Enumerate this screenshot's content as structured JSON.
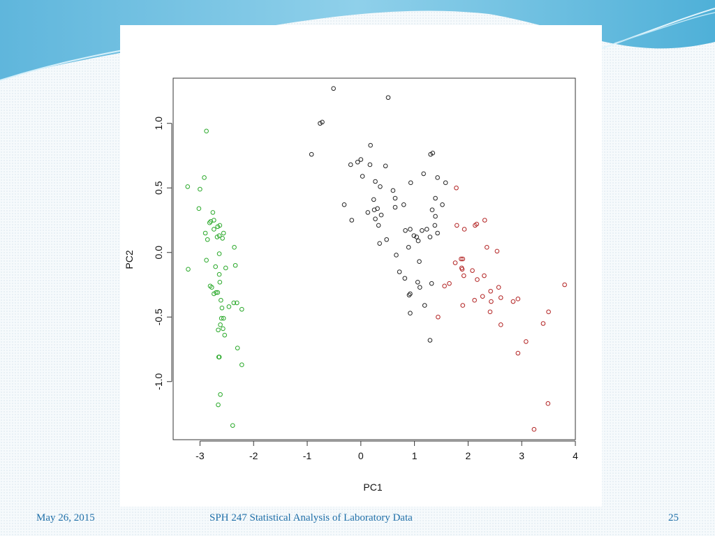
{
  "footer": {
    "date": "May 26, 2015",
    "course": "SPH 247 Statistical Analysis of Laboratory Data",
    "page": "25"
  },
  "colors": {
    "series_green": "#28a828",
    "series_black": "#222222",
    "series_red": "#b22222",
    "footer_text": "#1f6fa8"
  },
  "chart_data": {
    "type": "scatter",
    "title": "",
    "xlabel": "PC1",
    "ylabel": "PC2",
    "xlim": [
      -3.5,
      4.0
    ],
    "ylim": [
      -1.45,
      1.35
    ],
    "x_ticks": [
      "-3",
      "-2",
      "-1",
      "0",
      "1",
      "2",
      "3",
      "4"
    ],
    "y_ticks": [
      "-1.0",
      "-0.5",
      "0.0",
      "0.5",
      "1.0"
    ],
    "grid": false,
    "legend": "none",
    "series": [
      {
        "color": "#28a828",
        "points": [
          [
            -3.23,
            0.51
          ],
          [
            -3.22,
            -0.13
          ],
          [
            -3.0,
            0.49
          ],
          [
            -3.02,
            0.34
          ],
          [
            -2.92,
            0.58
          ],
          [
            -2.88,
            0.94
          ],
          [
            -2.9,
            0.15
          ],
          [
            -2.86,
            0.1
          ],
          [
            -2.88,
            -0.06
          ],
          [
            -2.82,
            0.23
          ],
          [
            -2.8,
            0.24
          ],
          [
            -2.76,
            0.31
          ],
          [
            -2.74,
            0.25
          ],
          [
            -2.74,
            0.18
          ],
          [
            -2.67,
            0.2
          ],
          [
            -2.63,
            0.21
          ],
          [
            -2.68,
            0.12
          ],
          [
            -2.64,
            0.13
          ],
          [
            -2.56,
            0.15
          ],
          [
            -2.64,
            -0.01
          ],
          [
            -2.58,
            0.11
          ],
          [
            -2.81,
            -0.26
          ],
          [
            -2.78,
            -0.27
          ],
          [
            -2.71,
            -0.11
          ],
          [
            -2.64,
            -0.17
          ],
          [
            -2.63,
            -0.23
          ],
          [
            -2.74,
            -0.32
          ],
          [
            -2.7,
            -0.31
          ],
          [
            -2.67,
            -0.31
          ],
          [
            -2.61,
            -0.37
          ],
          [
            -2.59,
            -0.43
          ],
          [
            -2.56,
            -0.51
          ],
          [
            -2.6,
            -0.51
          ],
          [
            -2.62,
            -0.56
          ],
          [
            -2.57,
            -0.59
          ],
          [
            -2.66,
            -0.6
          ],
          [
            -2.54,
            -0.64
          ],
          [
            -2.65,
            -0.81
          ],
          [
            -2.64,
            -0.81
          ],
          [
            -2.52,
            -0.12
          ],
          [
            -2.46,
            -0.42
          ],
          [
            -2.37,
            -0.39
          ],
          [
            -2.31,
            -0.39
          ],
          [
            -2.36,
            0.04
          ],
          [
            -2.34,
            -0.1
          ],
          [
            -2.22,
            -0.44
          ],
          [
            -2.3,
            -0.74
          ],
          [
            -2.22,
            -0.87
          ],
          [
            -2.62,
            -1.1
          ],
          [
            -2.66,
            -1.18
          ],
          [
            -2.39,
            -1.34
          ]
        ]
      },
      {
        "color": "#222222",
        "points": [
          [
            -0.51,
            1.27
          ],
          [
            -0.76,
            1.0
          ],
          [
            -0.72,
            1.01
          ],
          [
            0.51,
            1.2
          ],
          [
            -0.92,
            0.76
          ],
          [
            0.18,
            0.83
          ],
          [
            -0.19,
            0.68
          ],
          [
            -0.06,
            0.7
          ],
          [
            0.0,
            0.72
          ],
          [
            0.17,
            0.68
          ],
          [
            0.46,
            0.67
          ],
          [
            0.03,
            0.59
          ],
          [
            0.27,
            0.55
          ],
          [
            0.36,
            0.51
          ],
          [
            0.24,
            0.41
          ],
          [
            0.25,
            0.33
          ],
          [
            0.31,
            0.34
          ],
          [
            0.13,
            0.31
          ],
          [
            0.38,
            0.29
          ],
          [
            -0.31,
            0.37
          ],
          [
            -0.17,
            0.25
          ],
          [
            0.27,
            0.26
          ],
          [
            0.33,
            0.21
          ],
          [
            0.48,
            0.1
          ],
          [
            0.35,
            0.07
          ],
          [
            0.64,
            0.42
          ],
          [
            0.6,
            0.48
          ],
          [
            0.64,
            0.35
          ],
          [
            0.8,
            0.37
          ],
          [
            0.93,
            0.54
          ],
          [
            1.17,
            0.61
          ],
          [
            1.3,
            0.76
          ],
          [
            1.34,
            0.77
          ],
          [
            1.43,
            0.58
          ],
          [
            1.58,
            0.54
          ],
          [
            1.39,
            0.42
          ],
          [
            1.52,
            0.37
          ],
          [
            1.33,
            0.33
          ],
          [
            1.23,
            0.18
          ],
          [
            1.39,
            0.28
          ],
          [
            1.38,
            0.21
          ],
          [
            1.43,
            0.15
          ],
          [
            1.14,
            0.17
          ],
          [
            1.04,
            0.12
          ],
          [
            1.29,
            0.12
          ],
          [
            0.92,
            0.18
          ],
          [
            0.83,
            0.17
          ],
          [
            0.99,
            0.13
          ],
          [
            1.07,
            0.09
          ],
          [
            0.89,
            0.04
          ],
          [
            0.66,
            -0.02
          ],
          [
            1.09,
            -0.07
          ],
          [
            0.72,
            -0.15
          ],
          [
            0.82,
            -0.2
          ],
          [
            0.92,
            -0.32
          ],
          [
            0.9,
            -0.33
          ],
          [
            1.06,
            -0.23
          ],
          [
            1.1,
            -0.27
          ],
          [
            1.32,
            -0.24
          ],
          [
            1.19,
            -0.41
          ],
          [
            0.92,
            -0.47
          ],
          [
            1.29,
            -0.68
          ]
        ]
      },
      {
        "color": "#b22222",
        "points": [
          [
            1.78,
            0.5
          ],
          [
            1.79,
            0.21
          ],
          [
            1.93,
            0.18
          ],
          [
            2.13,
            0.21
          ],
          [
            2.16,
            0.22
          ],
          [
            2.31,
            0.25
          ],
          [
            2.35,
            0.04
          ],
          [
            2.54,
            0.01
          ],
          [
            1.76,
            -0.08
          ],
          [
            1.87,
            -0.05
          ],
          [
            1.9,
            -0.05
          ],
          [
            1.88,
            -0.12
          ],
          [
            1.89,
            -0.13
          ],
          [
            2.08,
            -0.14
          ],
          [
            1.92,
            -0.18
          ],
          [
            2.17,
            -0.21
          ],
          [
            2.3,
            -0.18
          ],
          [
            1.56,
            -0.26
          ],
          [
            1.65,
            -0.24
          ],
          [
            2.12,
            -0.37
          ],
          [
            2.27,
            -0.34
          ],
          [
            2.42,
            -0.3
          ],
          [
            2.43,
            -0.38
          ],
          [
            2.57,
            -0.27
          ],
          [
            2.61,
            -0.35
          ],
          [
            2.84,
            -0.38
          ],
          [
            2.93,
            -0.36
          ],
          [
            1.9,
            -0.41
          ],
          [
            2.41,
            -0.46
          ],
          [
            1.44,
            -0.5
          ],
          [
            2.61,
            -0.56
          ],
          [
            3.4,
            -0.55
          ],
          [
            3.5,
            -0.46
          ],
          [
            3.8,
            -0.25
          ],
          [
            3.08,
            -0.69
          ],
          [
            2.93,
            -0.78
          ],
          [
            3.49,
            -1.17
          ],
          [
            3.23,
            -1.37
          ]
        ]
      }
    ]
  }
}
